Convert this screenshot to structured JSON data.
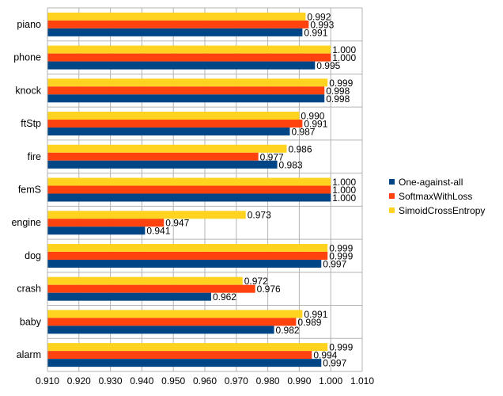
{
  "chart_data": {
    "type": "bar",
    "orientation": "horizontal",
    "categories": [
      "piano",
      "phone",
      "knock",
      "ftStp",
      "fire",
      "femS",
      "engine",
      "dog",
      "crash",
      "baby",
      "alarm"
    ],
    "series": [
      {
        "name": "One-against-all",
        "color": "#004586",
        "values": [
          0.991,
          0.995,
          0.998,
          0.987,
          0.983,
          1.0,
          0.941,
          0.997,
          0.962,
          0.982,
          0.997
        ],
        "labels": [
          "0.991",
          "0.995",
          "0.998",
          "0.987",
          "0.983",
          "1.000",
          "0.941",
          "0.997",
          "0.962",
          "0.982",
          "0.997"
        ]
      },
      {
        "name": "SoftmaxWithLoss",
        "color": "#FF420E",
        "values": [
          0.993,
          1.0,
          0.998,
          0.991,
          0.977,
          1.0,
          0.947,
          0.999,
          0.976,
          0.989,
          0.994
        ],
        "labels": [
          "0.993",
          "1.000",
          "0.998",
          "0.991",
          "0.977",
          "1.000",
          "0.947",
          "0.999",
          "0.976",
          "0.989",
          "0.994"
        ]
      },
      {
        "name": "SimoidCrossEntropy",
        "color": "#FFD320",
        "values": [
          0.992,
          1.0,
          0.999,
          0.99,
          0.986,
          1.0,
          0.973,
          0.999,
          0.972,
          0.991,
          0.999
        ],
        "labels": [
          "0.992",
          "1.000",
          "0.999",
          "0.990",
          "0.986",
          "1.000",
          "0.973",
          "0.999",
          "0.972",
          "0.991",
          "0.999"
        ]
      }
    ],
    "xlim": [
      0.91,
      1.01
    ],
    "xticks": [
      "0.910",
      "0.920",
      "0.930",
      "0.940",
      "0.950",
      "0.960",
      "0.970",
      "0.980",
      "0.990",
      "1.000",
      "1.010"
    ],
    "grid": true,
    "legend": "right",
    "title": "",
    "xlabel": "",
    "ylabel": ""
  }
}
